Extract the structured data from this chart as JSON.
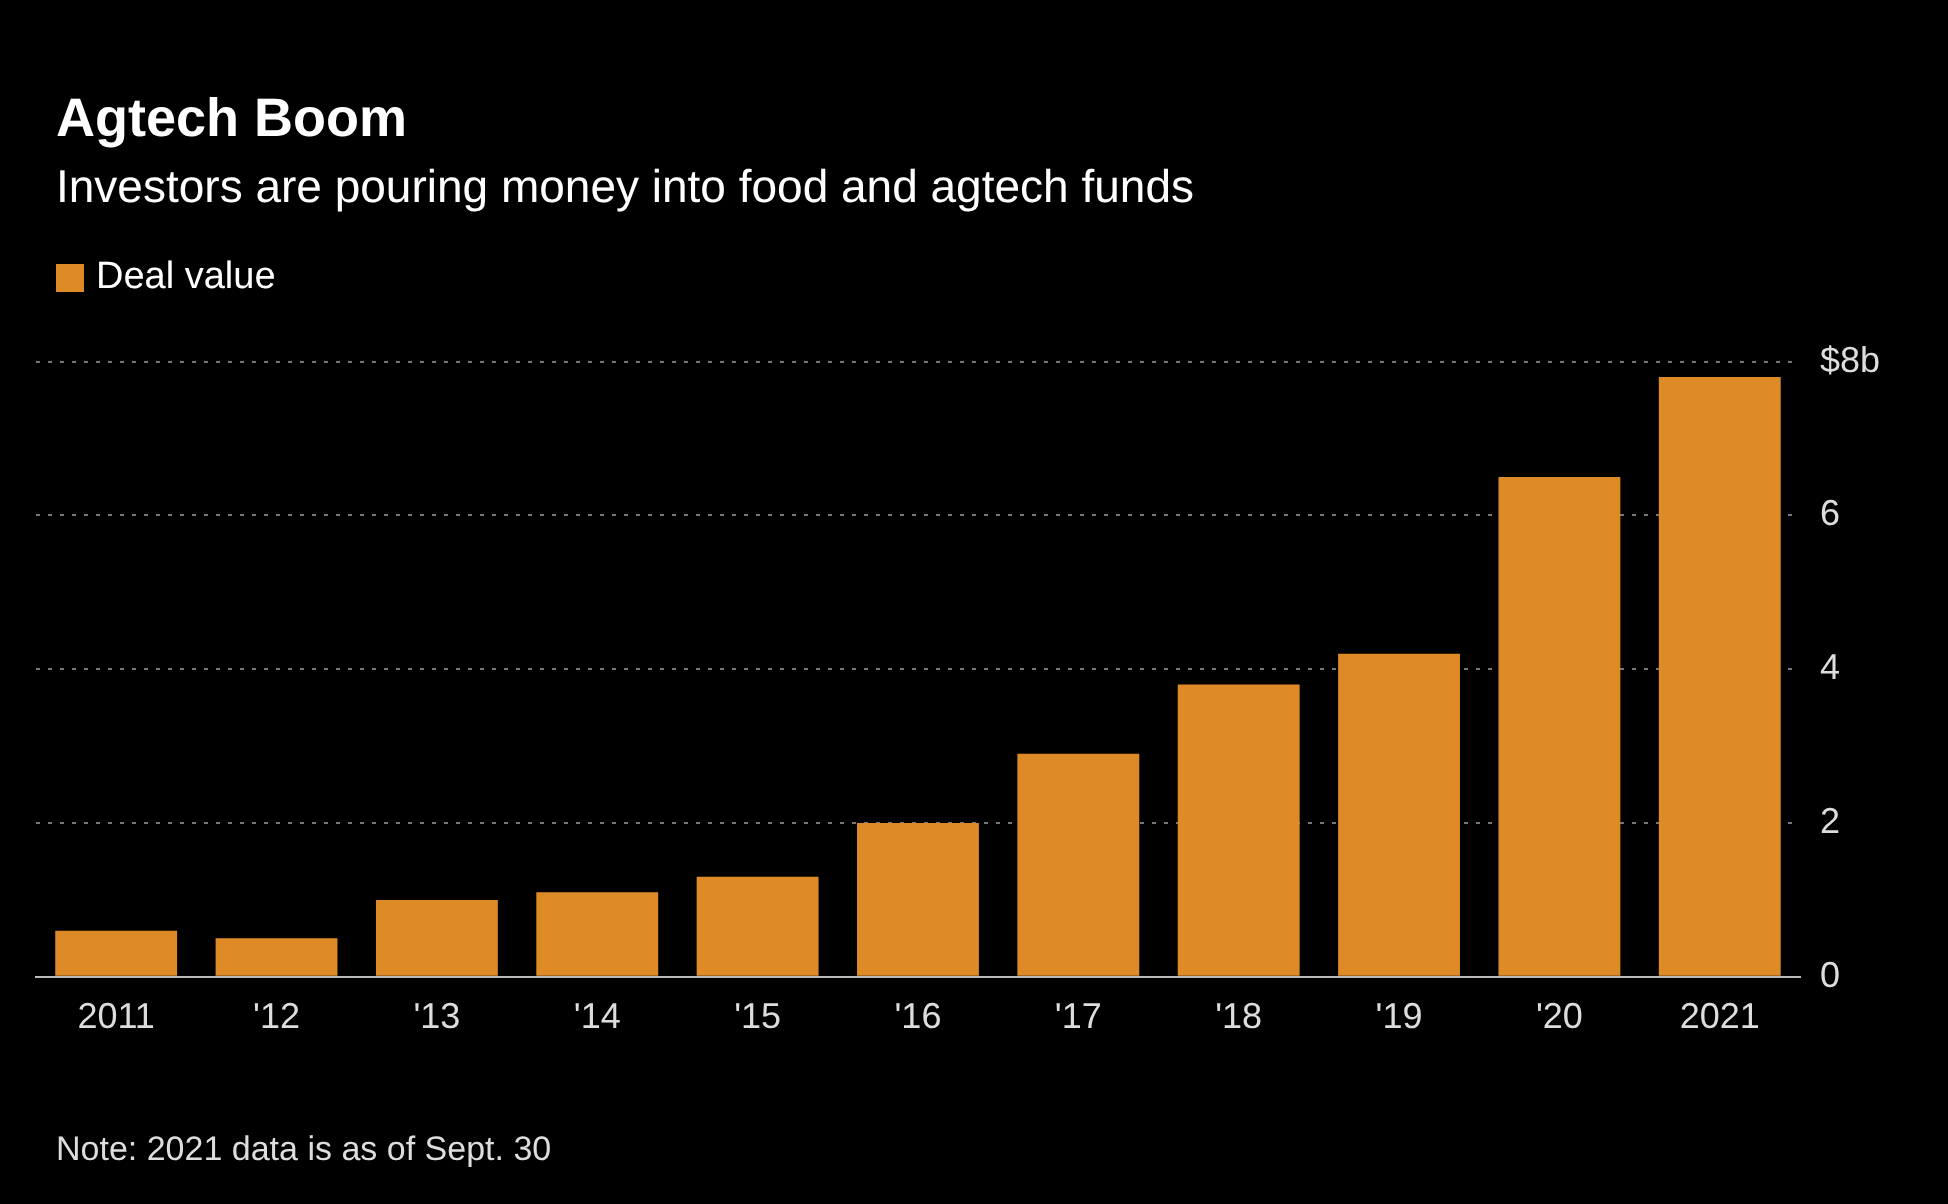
{
  "chart_data": {
    "type": "bar",
    "title": "Agtech Boom",
    "subtitle": "Investors are pouring money into food and agtech funds",
    "categories": [
      "2011",
      "'12",
      "'13",
      "'14",
      "'15",
      "'16",
      "'17",
      "'18",
      "'19",
      "'20",
      "2021"
    ],
    "series": [
      {
        "name": "Deal value",
        "color": "#de8b27",
        "values": [
          0.6,
          0.5,
          1.0,
          1.1,
          1.3,
          2.0,
          2.9,
          3.8,
          4.2,
          6.5,
          7.8
        ]
      }
    ],
    "ylim": [
      0,
      8
    ],
    "yticks": [
      0,
      2,
      4,
      6,
      {
        "value": 8,
        "label": "$8b"
      }
    ],
    "grid": "y",
    "legend": "top left",
    "annotations": [
      "Note: 2021 data is as of Sept. 30"
    ]
  }
}
